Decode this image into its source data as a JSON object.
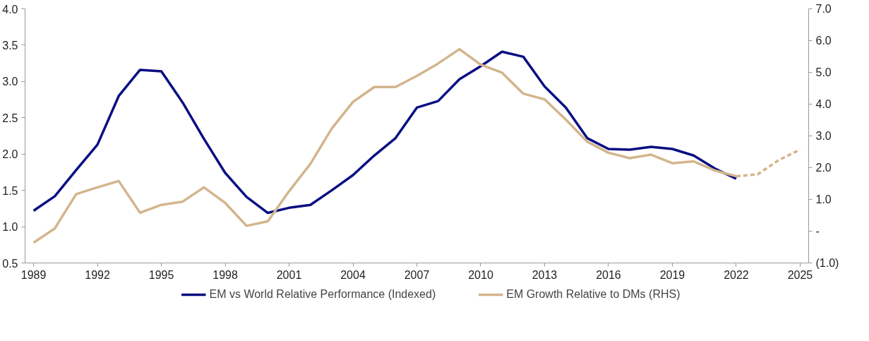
{
  "chart_data": {
    "type": "line",
    "x": [
      1989,
      1990,
      1991,
      1992,
      1993,
      1994,
      1995,
      1996,
      1997,
      1998,
      1999,
      2000,
      2001,
      2002,
      2003,
      2004,
      2005,
      2006,
      2007,
      2008,
      2009,
      2010,
      2011,
      2012,
      2013,
      2014,
      2015,
      2016,
      2017,
      2018,
      2019,
      2020,
      2021,
      2022
    ],
    "series": [
      {
        "name": "EM vs World Relative Performance (Indexed)",
        "color": "#0a0f82",
        "values": [
          1.22,
          1.42,
          1.78,
          2.13,
          2.8,
          3.16,
          3.14,
          2.71,
          2.21,
          1.74,
          1.41,
          1.19,
          1.26,
          1.3,
          1.5,
          1.71,
          1.98,
          2.22,
          2.64,
          2.73,
          3.03,
          3.21,
          3.41,
          3.34,
          2.93,
          2.64,
          2.22,
          2.07,
          2.06,
          2.1,
          2.07,
          1.98,
          1.8,
          1.66
        ]
      },
      {
        "name": "EM Growth Relative to DMs (RHS)",
        "color": "#d3b58c",
        "axis": "y2",
        "values": [
          -0.36,
          0.09,
          1.17,
          1.38,
          1.58,
          0.58,
          0.83,
          0.93,
          1.38,
          0.89,
          0.17,
          0.31,
          1.26,
          2.12,
          3.23,
          4.07,
          4.54,
          4.54,
          4.89,
          5.28,
          5.73,
          5.24,
          4.99,
          4.33,
          4.15,
          3.51,
          2.82,
          2.47,
          2.3,
          2.41,
          2.14,
          2.2,
          1.91,
          1.73
        ]
      },
      {
        "color": "#d3b58c",
        "axis": "y2",
        "line_style": "dashed",
        "x": [
          2022,
          2023,
          2024,
          2025
        ],
        "values": [
          1.73,
          1.79,
          2.24,
          2.57
        ]
      }
    ],
    "xlim": [
      1988.6,
      2025.4
    ],
    "xticks": [
      1989,
      1992,
      1995,
      1998,
      2001,
      2004,
      2007,
      2010,
      2013,
      2016,
      2019,
      2022,
      2025
    ],
    "ylim": [
      0.5,
      4.0
    ],
    "yticks": [
      {
        "value": 0.5,
        "label": "0.5"
      },
      {
        "value": 1.0,
        "label": "1.0"
      },
      {
        "value": 1.5,
        "label": "1.5"
      },
      {
        "value": 2.0,
        "label": "2.0"
      },
      {
        "value": 2.5,
        "label": "2.5"
      },
      {
        "value": 3.0,
        "label": "3.0"
      },
      {
        "value": 3.5,
        "label": "3.5"
      },
      {
        "value": 4.0,
        "label": "4.0"
      }
    ],
    "y2lim": [
      -1.0,
      7.0
    ],
    "y2ticks": [
      {
        "value": -1,
        "label": "(1.0)"
      },
      {
        "value": 0,
        "label": "-"
      },
      {
        "value": 1,
        "label": "1.0"
      },
      {
        "value": 2,
        "label": "2.0"
      },
      {
        "value": 3,
        "label": "3.0"
      },
      {
        "value": 4,
        "label": "4.0"
      },
      {
        "value": 5,
        "label": "5.0"
      },
      {
        "value": 6,
        "label": "6.0"
      },
      {
        "value": 7,
        "label": "7.0"
      }
    ],
    "grid": false,
    "legend": "bottom",
    "line_style": "solid"
  }
}
